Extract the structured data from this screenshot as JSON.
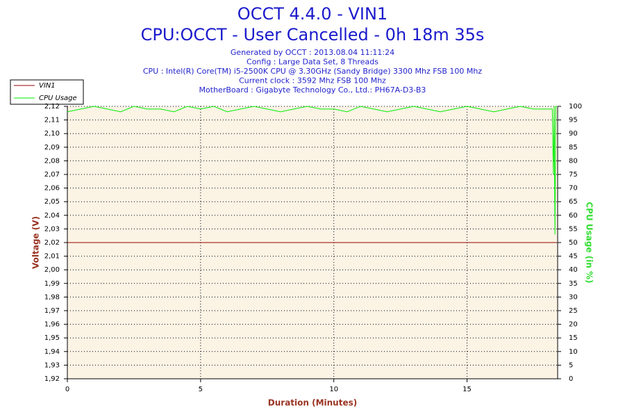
{
  "chart_data": {
    "type": "line",
    "title": "OCCT 4.4.0 - VIN1",
    "subtitle": "CPU:OCCT - User Cancelled - 0h 18m 35s",
    "info_lines": [
      "Generated by OCCT : 2013.08.04 11:11:24",
      "Config : Large Data Set, 8 Threads",
      "CPU : Intel(R) Core(TM) i5-2500K CPU @ 3.30GHz (Sandy Bridge) 3300 Mhz FSB 100 Mhz",
      "Current clock : 3592 Mhz FSB 100 Mhz",
      "MotherBoard : Gigabyte Technology Co., Ltd.: PH67A-D3-B3"
    ],
    "x_label": "Duration (Minutes)",
    "y_label": "Voltage (V)",
    "y2_label": "CPU Usage (in %)",
    "xlim": [
      0,
      18.4
    ],
    "xticks": [
      0,
      5,
      10,
      15
    ],
    "ylim": [
      1.92,
      2.12
    ],
    "yticks": [
      {
        "value": 1.92,
        "label": "1,92"
      },
      {
        "value": 1.93,
        "label": "1,93"
      },
      {
        "value": 1.94,
        "label": "1,94"
      },
      {
        "value": 1.95,
        "label": "1,95"
      },
      {
        "value": 1.96,
        "label": "1,96"
      },
      {
        "value": 1.97,
        "label": "1,97"
      },
      {
        "value": 1.98,
        "label": "1,98"
      },
      {
        "value": 1.99,
        "label": "1,99"
      },
      {
        "value": 2.0,
        "label": "2,00"
      },
      {
        "value": 2.01,
        "label": "2,01"
      },
      {
        "value": 2.02,
        "label": "2,02"
      },
      {
        "value": 2.03,
        "label": "2,03"
      },
      {
        "value": 2.04,
        "label": "2,04"
      },
      {
        "value": 2.05,
        "label": "2,05"
      },
      {
        "value": 2.06,
        "label": "2,06"
      },
      {
        "value": 2.07,
        "label": "2,07"
      },
      {
        "value": 2.08,
        "label": "2,08"
      },
      {
        "value": 2.09,
        "label": "2,09"
      },
      {
        "value": 2.1,
        "label": "2,10"
      },
      {
        "value": 2.11,
        "label": "2,11"
      },
      {
        "value": 2.12,
        "label": "2,12"
      }
    ],
    "y2lim": [
      0,
      100
    ],
    "y2ticks": [
      0,
      5,
      10,
      15,
      20,
      25,
      30,
      35,
      40,
      45,
      50,
      55,
      60,
      65,
      70,
      75,
      80,
      85,
      90,
      95,
      100
    ],
    "grid": true,
    "legend": "top-left",
    "series": [
      {
        "name": "VIN1",
        "color": "#990000",
        "x": [
          0,
          18.35
        ],
        "values": [
          2.02,
          2.02
        ]
      },
      {
        "name": "CPU Usage",
        "color": "#00ee00",
        "axis": "y2",
        "x": [
          0,
          0.5,
          1,
          1.5,
          2,
          2.5,
          3,
          3.5,
          4,
          4.5,
          5,
          5.5,
          6,
          6.5,
          7,
          7.5,
          8,
          8.5,
          9,
          9.5,
          10,
          10.5,
          11,
          11.5,
          12,
          12.5,
          13,
          13.5,
          14,
          14.5,
          15,
          15.5,
          16,
          16.5,
          17,
          17.5,
          18,
          18.2,
          18.24,
          18.27,
          18.3,
          18.33,
          18.38
        ],
        "values": [
          98,
          99,
          100,
          99,
          98,
          100,
          99,
          99,
          98,
          100,
          99,
          100,
          98,
          99,
          100,
          99,
          98,
          99,
          100,
          99,
          99,
          98,
          100,
          99,
          98,
          99,
          100,
          99,
          98,
          99,
          100,
          99,
          98,
          99,
          100,
          99,
          99,
          99,
          75,
          100,
          53,
          100,
          100
        ]
      }
    ]
  }
}
